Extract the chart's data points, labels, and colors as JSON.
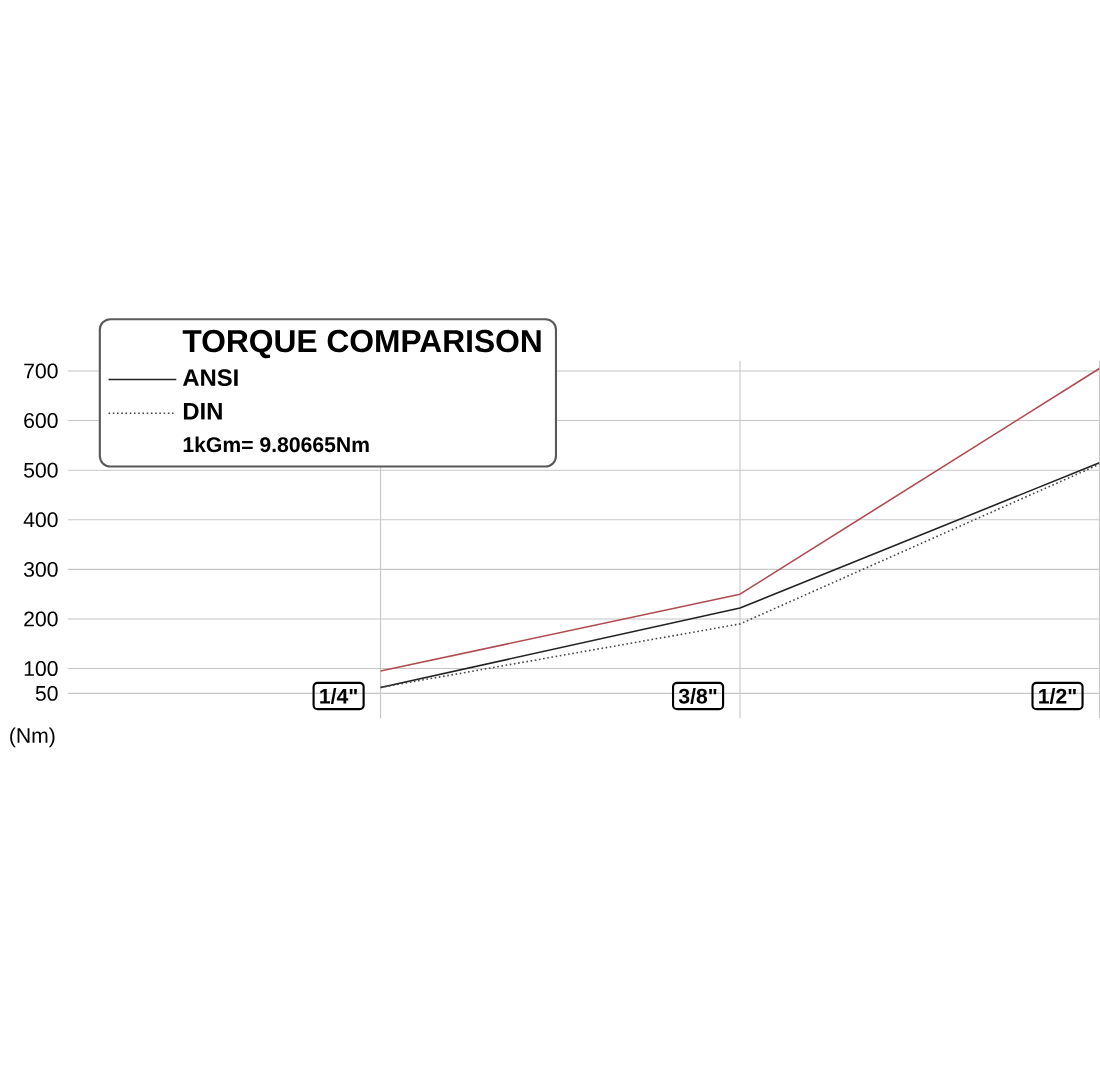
{
  "chart_data": {
    "type": "line",
    "legend_title": "TORQUE COMPARISON",
    "ylabel": "(Nm)",
    "categories": [
      "1/4\"",
      "3/8\"",
      "1/2\""
    ],
    "series": [
      {
        "color": "#b04a50",
        "values": [
          95,
          250,
          705
        ],
        "line_style": "solid"
      },
      {
        "name": "ANSI",
        "color": "#222222",
        "values": [
          62,
          222,
          515
        ],
        "line_style": "solid"
      },
      {
        "name": "DIN",
        "color": "#444444",
        "values": [
          62,
          190,
          512
        ],
        "line_style": "dotted"
      }
    ],
    "annotations": [
      "1kGm= 9.80665Nm"
    ],
    "ylim": [
      0,
      720
    ],
    "yticks": [
      50,
      100,
      200,
      300,
      400,
      500,
      600,
      700
    ],
    "grid": true,
    "legend": "top left"
  }
}
